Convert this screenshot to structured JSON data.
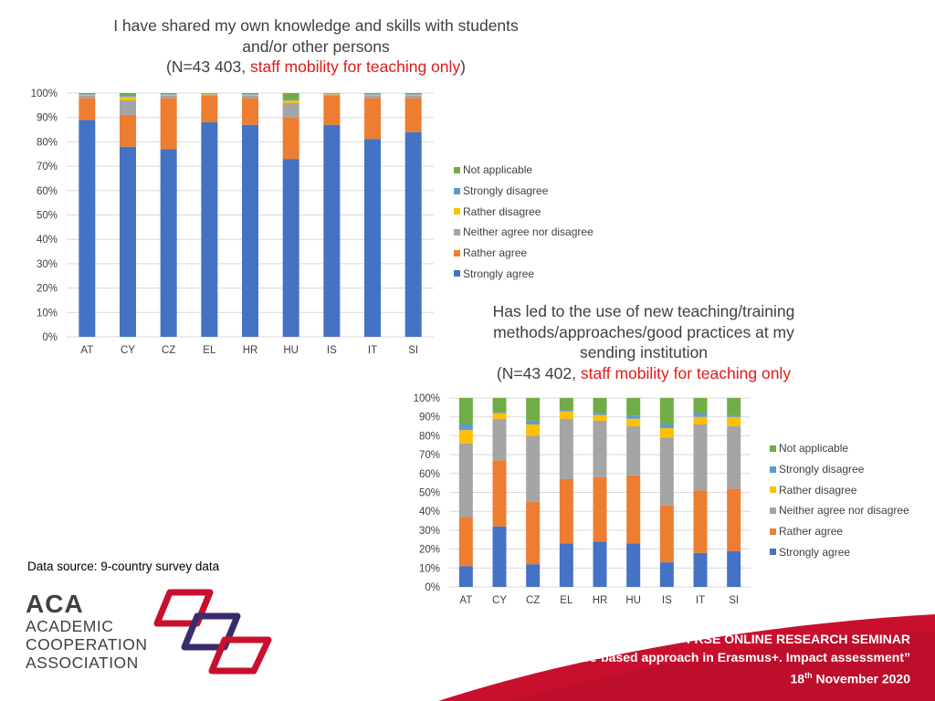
{
  "chart1_title": {
    "line1": "I have shared my own knowledge and skills with students",
    "line2": "and/or other persons",
    "line3_pre": "(N=43 403, ",
    "line3_red": "staff mobility for teaching only",
    "line3_post": ")"
  },
  "chart2_title": {
    "line1": "Has led to the use of new teaching/training",
    "line2": "methods/approaches/good practices at my",
    "line3": "sending institution",
    "line4_pre": "(N=43 402, ",
    "line4_red": "staff mobility for teaching only"
  },
  "source_text": "Data source: 9-country survey data",
  "logo": {
    "abbr": "ACA",
    "line1": "ACADEMIC",
    "line2": "COOPERATION",
    "line3": "ASSOCIATION"
  },
  "footer": {
    "line1": "FRSE ONLINE RESEARCH SEMINAR",
    "line2": "“Evidence-based approach in Erasmus+. Impact assessment”",
    "line3_pre": "18",
    "line3_sup": "th",
    "line3_post": " November 2020"
  },
  "colors": {
    "strongly_agree": "#4472c4",
    "rather_agree": "#ed7d31",
    "neither": "#a5a5a5",
    "rather_disagree": "#ffc000",
    "strongly_disagree": "#5b9bd5",
    "not_applicable": "#70ad47",
    "footer_red": "#c8102e",
    "title_red": "#e01b1b"
  },
  "chart_data": [
    {
      "type": "bar",
      "stacked": true,
      "title": "I have shared my own knowledge and skills with students and/or other persons (N=43 403, staff mobility for teaching only)",
      "categories": [
        "AT",
        "CY",
        "CZ",
        "EL",
        "HR",
        "HU",
        "IS",
        "IT",
        "SI"
      ],
      "ylim": [
        0,
        100
      ],
      "yticks": [
        "0%",
        "10%",
        "20%",
        "30%",
        "40%",
        "50%",
        "60%",
        "70%",
        "80%",
        "90%",
        "100%"
      ],
      "legend": [
        "Not applicable",
        "Strongly disagree",
        "Rather disagree",
        "Neither agree nor disagree",
        "Rather agree",
        "Strongly agree"
      ],
      "series": [
        {
          "name": "Strongly agree",
          "values": [
            89,
            78,
            77,
            88,
            87,
            73,
            87,
            82,
            84
          ]
        },
        {
          "name": "Rather agree",
          "values": [
            9,
            13,
            21,
            11,
            11,
            17,
            12,
            17,
            14
          ]
        },
        {
          "name": "Neither agree nor disagree",
          "values": [
            1,
            6,
            1,
            0.5,
            1,
            6,
            0.5,
            1,
            1
          ]
        },
        {
          "name": "Rather disagree",
          "values": [
            0.3,
            1.5,
            0.3,
            0.2,
            0.3,
            1,
            0.2,
            0.3,
            0.3
          ]
        },
        {
          "name": "Strongly disagree",
          "values": [
            0.2,
            0.3,
            0.2,
            0.1,
            0.2,
            0.5,
            0.1,
            0.2,
            0.2
          ]
        },
        {
          "name": "Not applicable",
          "values": [
            0.5,
            1.2,
            0.5,
            0.2,
            0.5,
            2.5,
            0.2,
            0.5,
            0.5
          ]
        }
      ]
    },
    {
      "type": "bar",
      "stacked": true,
      "title": "Has led to the use of new teaching/training methods/approaches/good practices at my sending institution (N=43 402, staff mobility for teaching only",
      "categories": [
        "AT",
        "CY",
        "CZ",
        "EL",
        "HR",
        "HU",
        "IS",
        "IT",
        "SI"
      ],
      "ylim": [
        0,
        100
      ],
      "yticks": [
        "0%",
        "10%",
        "20%",
        "30%",
        "40%",
        "50%",
        "60%",
        "70%",
        "80%",
        "90%",
        "100%"
      ],
      "legend": [
        "Not applicable",
        "Strongly disagree",
        "Rather disagree",
        "Neither agree nor disagree",
        "Rather agree",
        "Strongly agree"
      ],
      "series": [
        {
          "name": "Strongly agree",
          "values": [
            11,
            32,
            12,
            23,
            24,
            23,
            13,
            18,
            19
          ]
        },
        {
          "name": "Rather agree",
          "values": [
            26,
            35,
            33,
            34,
            34,
            36,
            30,
            33,
            33
          ]
        },
        {
          "name": "Neither agree nor disagree",
          "values": [
            39,
            22,
            35,
            32,
            30,
            26,
            36,
            35,
            33
          ]
        },
        {
          "name": "Rather disagree",
          "values": [
            7,
            3,
            6,
            4,
            3,
            4,
            5,
            4,
            5
          ]
        },
        {
          "name": "Strongly disagree",
          "values": [
            3,
            0.5,
            2,
            1,
            1,
            1.5,
            2,
            2,
            1
          ]
        },
        {
          "name": "Not applicable",
          "values": [
            14,
            7.5,
            12,
            6,
            8,
            9.5,
            14,
            8,
            9
          ]
        }
      ]
    }
  ]
}
